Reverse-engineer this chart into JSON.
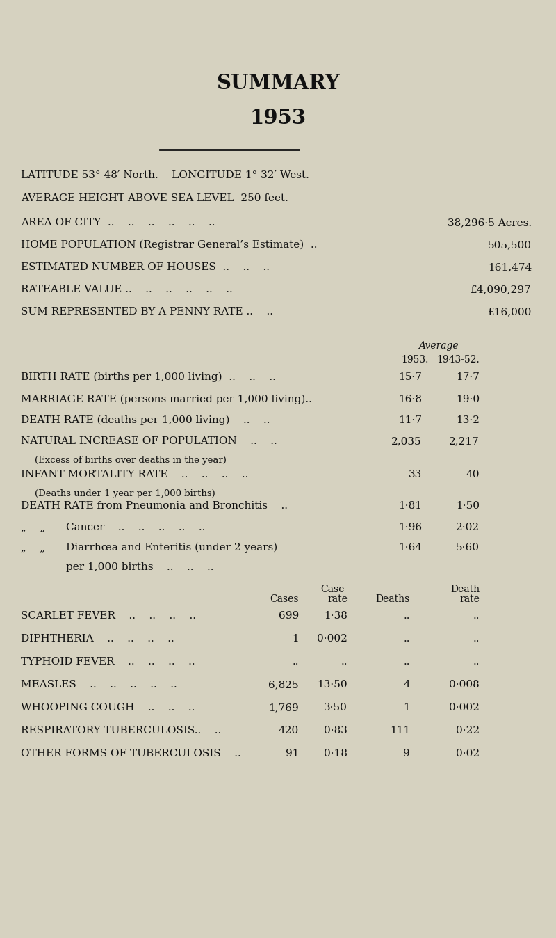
{
  "title1": "SUMMARY",
  "title2": "1953",
  "bg_color": "#d6d2c0",
  "text_color": "#111111",
  "line1": "LATITUDE 53° 48′ North.    LONGITUDE 1° 32′ West.",
  "line2": "AVERAGE HEIGHT ABOVE SEA LEVEL  250 feet.",
  "rows_simple": [
    {
      "label": "AREA OF CITY",
      "dots": "  ..    ..    ..    ..    ..    ..",
      "value": "38,296·5 Acres."
    },
    {
      "label": "HOME POPULATION (Registrar General’s Estimate)",
      "dots": "  ..",
      "value": "505,500"
    },
    {
      "label": "ESTIMATED NUMBER OF HOUSES",
      "dots": "  ..    ..    ..",
      "value": "161,474"
    },
    {
      "label": "RATEABLE VALUE ..",
      "dots": "    ..    ..    ..    ..    ..",
      "value": "£4,090,297"
    },
    {
      "label": "SUM REPRESENTED BY A PENNY RATE ..",
      "dots": "    ..",
      "value": "£16,000"
    }
  ],
  "col_header_avg": "Average",
  "col_header_1953": "1953.",
  "col_header_avg52": "1943-52.",
  "rates": [
    {
      "label": "BIRTH RATE (births per 1,000 living)  ..    ..    ..",
      "val1953": "15·7",
      "valavg": "17·7"
    },
    {
      "label": "MARRIAGE RATE (persons married per 1,000 living)..",
      "val1953": "16·8",
      "valavg": "19·0"
    },
    {
      "label": "DEATH RATE (deaths per 1,000 living)    ..    ..",
      "val1953": "11·7",
      "valavg": "13·2"
    },
    {
      "label": "NATURAL INCREASE OF POPULATION    ..    ..",
      "label2": "(Excess of births over deaths in the year)",
      "val1953": "2,035",
      "valavg": "2,217"
    },
    {
      "label": "INFANT MORTALITY RATE    ..    ..    ..    ..",
      "label2": "(Deaths under 1 year per 1,000 births)",
      "val1953": "33",
      "valavg": "40"
    }
  ],
  "death_rates": [
    {
      "label": "DEATH RATE from Pneumonia and Bronchitis    ..",
      "val1953": "1·81",
      "valavg": "1·50"
    },
    {
      "label_indent": "„    „",
      "label_main": "Cancer    ..    ..    ..    ..    ..",
      "val1953": "1·96",
      "valavg": "2·02"
    },
    {
      "label_indent": "„    „",
      "label_main": "Diarrhœa and Enteritis (under 2 years)",
      "label2": "per 1,000 births    ..    ..    ..",
      "val1953": "1·64",
      "valavg": "5·60"
    }
  ],
  "diseases": [
    {
      "name": "SCARLET FEVER    ..    ..    ..    ..",
      "cases": "699",
      "case_rate": "1·38",
      "deaths": "..",
      "death_rate": ".."
    },
    {
      "name": "DIPHTHERIA    ..    ..    ..    ..",
      "cases": "1",
      "case_rate": "0·002",
      "deaths": "..",
      "death_rate": ".."
    },
    {
      "name": "TYPHOID FEVER    ..    ..    ..    ..",
      "cases": "..",
      "case_rate": "..",
      "deaths": "..",
      "death_rate": ".."
    },
    {
      "name": "MEASLES    ..    ..    ..    ..    ..",
      "cases": "6,825",
      "case_rate": "13·50",
      "deaths": "4",
      "death_rate": "0·008"
    },
    {
      "name": "WHOOPING COUGH    ..    ..    ..",
      "cases": "1,769",
      "case_rate": "3·50",
      "deaths": "1",
      "death_rate": "0·002"
    },
    {
      "name": "RESPIRATORY TUBERCULOSIS..    ..",
      "cases": "420",
      "case_rate": "0·83",
      "deaths": "111",
      "death_rate": "0·22"
    },
    {
      "name": "OTHER FORMS OF TUBERCULOSIS    ..",
      "cases": "91",
      "case_rate": "0·18",
      "deaths": "9",
      "death_rate": "0·02"
    }
  ]
}
